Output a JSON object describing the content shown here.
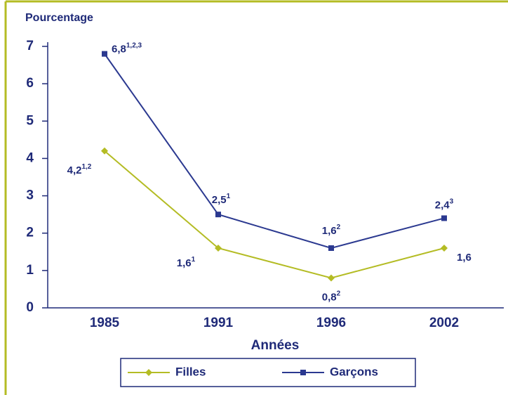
{
  "chart_data": {
    "type": "line",
    "y_label": "Pourcentage",
    "x_label": "Années",
    "categories": [
      "1985",
      "1991",
      "1996",
      "2002"
    ],
    "series": [
      {
        "name": "Filles",
        "color": "#b4bc24",
        "marker": "diamond",
        "values": [
          4.2,
          1.6,
          0.8,
          1.6
        ],
        "value_labels": [
          "4,2",
          "1,6",
          "0,8",
          "1,6"
        ],
        "value_notes": [
          "1,2",
          "1",
          "2",
          null
        ]
      },
      {
        "name": "Garçons",
        "color": "#2b3990",
        "marker": "square",
        "values": [
          6.8,
          2.5,
          1.6,
          2.4
        ],
        "value_labels": [
          "6,8",
          "2,5",
          "1,6",
          "2,4"
        ],
        "value_notes": [
          "1,2,3",
          "1",
          "2",
          "3"
        ]
      }
    ],
    "ylim": [
      0,
      7
    ],
    "yticks": [
      0,
      1,
      2,
      3,
      4,
      5,
      6,
      7
    ],
    "grid": false,
    "legend": "bottom"
  }
}
